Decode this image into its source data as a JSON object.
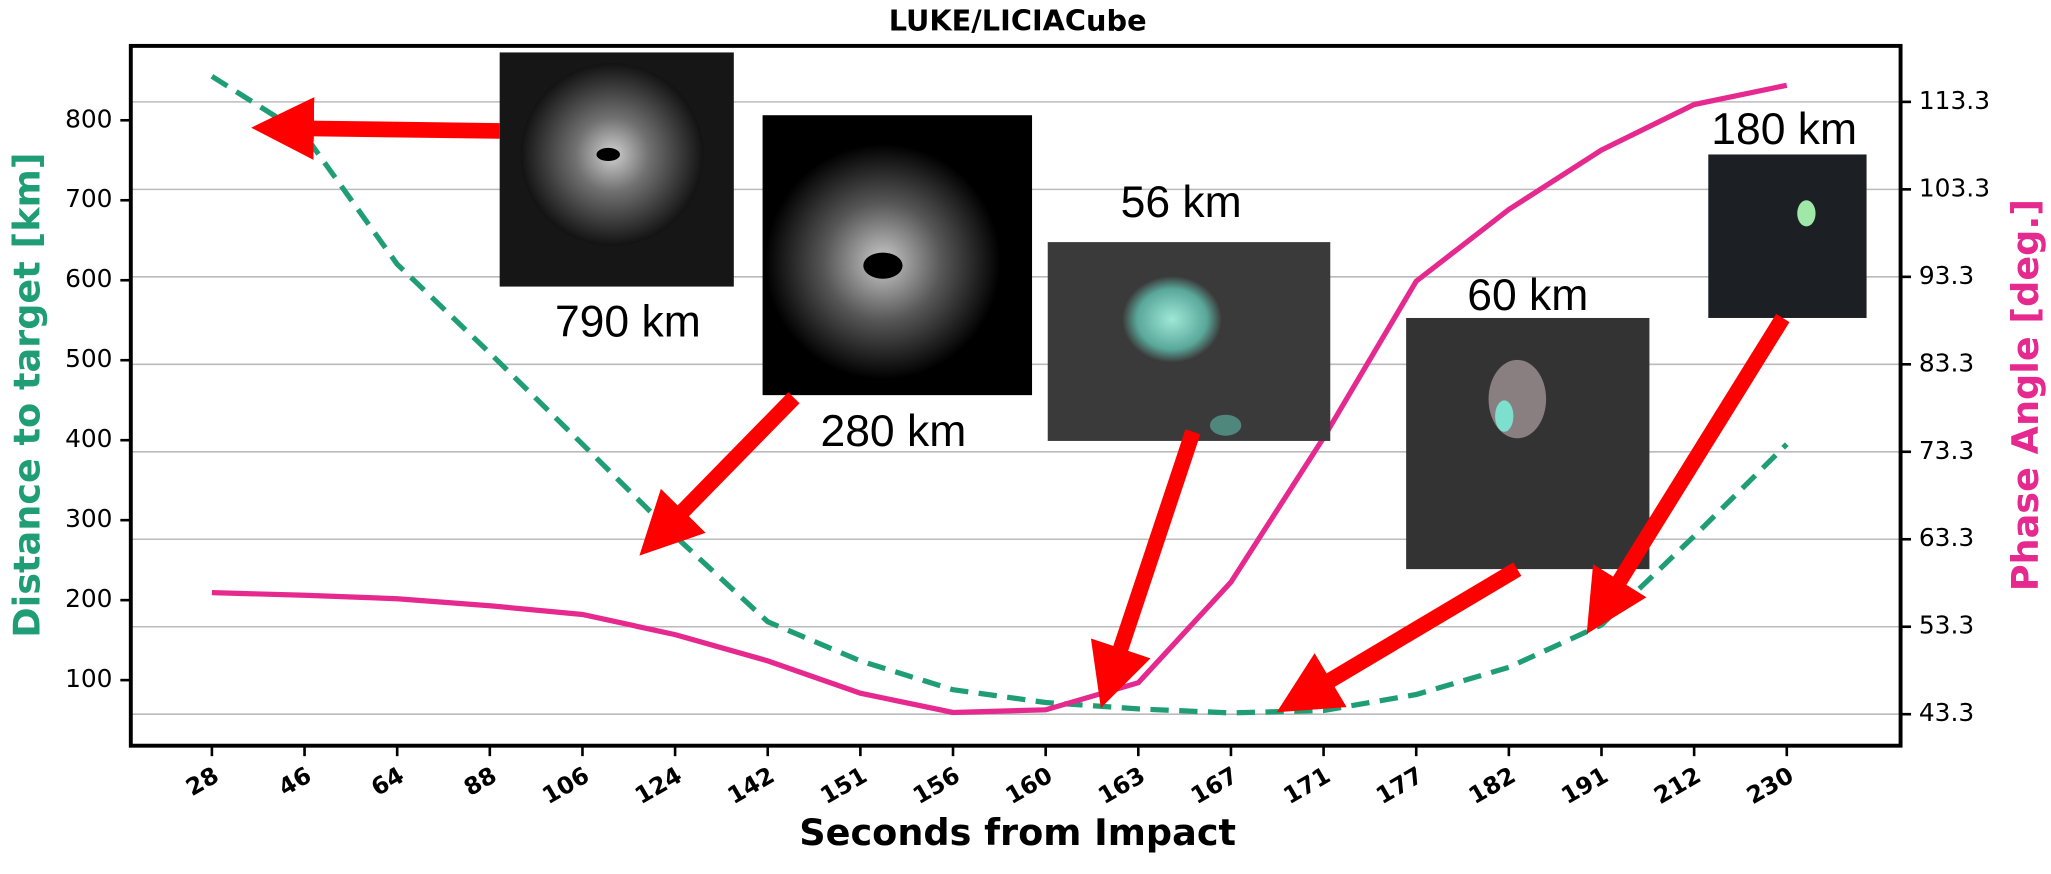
{
  "chart_data": {
    "type": "line",
    "title": "LUKE/LICIACube",
    "x_label": "Seconds from Impact",
    "y_label": "Distance to target [km]",
    "y2_label": "Phase Angle [deg.]",
    "categories": [
      "28",
      "46",
      "64",
      "88",
      "106",
      "124",
      "142",
      "151",
      "156",
      "160",
      "163",
      "167",
      "171",
      "177",
      "182",
      "191",
      "212",
      "230"
    ],
    "series": [
      {
        "name": "Distance to target [km]",
        "color": "#1f9e76",
        "dashed": true,
        "values": [
          855,
          782,
          620,
          509,
          395,
          280,
          173,
          124,
          88,
          72,
          64,
          59,
          62,
          82,
          116,
          169,
          280,
          395
        ]
      },
      {
        "name": "Phase Angle [deg.]",
        "color": "#e5298f",
        "axis": "y2",
        "values": [
          57.2,
          56.9,
          56.5,
          55.7,
          54.7,
          52.4,
          49.4,
          45.7,
          43.5,
          43.8,
          46.9,
          58.4,
          74.9,
          92.8,
          101.0,
          107.8,
          113.0,
          115.2
        ]
      }
    ],
    "ylim": [
      18,
      893
    ],
    "yticks": [
      100,
      200,
      300,
      400,
      500,
      600,
      700,
      800
    ],
    "y2lim": [
      39.7,
      119.7
    ],
    "y2ticks": [
      43.3,
      53.3,
      63.3,
      73.3,
      83.3,
      93.3,
      103.3,
      113.3
    ],
    "grid": true,
    "annotations": [
      "790 km",
      "280 km",
      "56 km",
      "60 km",
      "180 km"
    ]
  }
}
